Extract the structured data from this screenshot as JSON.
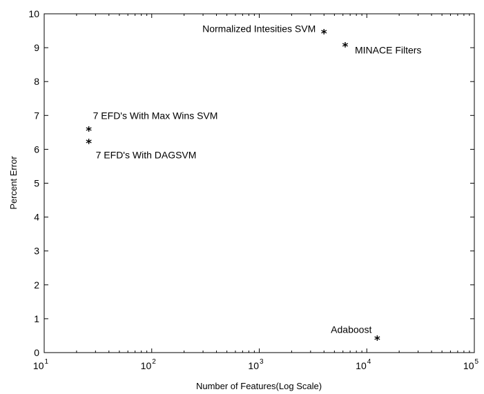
{
  "chart_data": {
    "type": "scatter",
    "xlabel": "Number of Features(Log Scale)",
    "ylabel": "Percent Error",
    "x_scale": "log",
    "xlim": [
      10,
      100000
    ],
    "ylim": [
      0,
      10
    ],
    "grid": false,
    "legend": "none",
    "marker": "*",
    "x_ticks": [
      {
        "base": "10",
        "exp": "1"
      },
      {
        "base": "10",
        "exp": "2"
      },
      {
        "base": "10",
        "exp": "3"
      },
      {
        "base": "10",
        "exp": "4"
      },
      {
        "base": "10",
        "exp": "5"
      }
    ],
    "y_ticks": [
      "0",
      "1",
      "2",
      "3",
      "4",
      "5",
      "6",
      "7",
      "8",
      "9",
      "10"
    ],
    "points": [
      {
        "x": 4000,
        "y": 9.42,
        "label": "Normalized Intesities SVM"
      },
      {
        "x": 6300,
        "y": 9.03,
        "label": "MINACE Filters"
      },
      {
        "x": 26,
        "y": 6.55,
        "label": "7 EFD's With Max Wins SVM"
      },
      {
        "x": 26,
        "y": 6.18,
        "label": "7 EFD's With DAGSVM"
      },
      {
        "x": 12500,
        "y": 0.38,
        "label": "Adaboost"
      }
    ]
  }
}
